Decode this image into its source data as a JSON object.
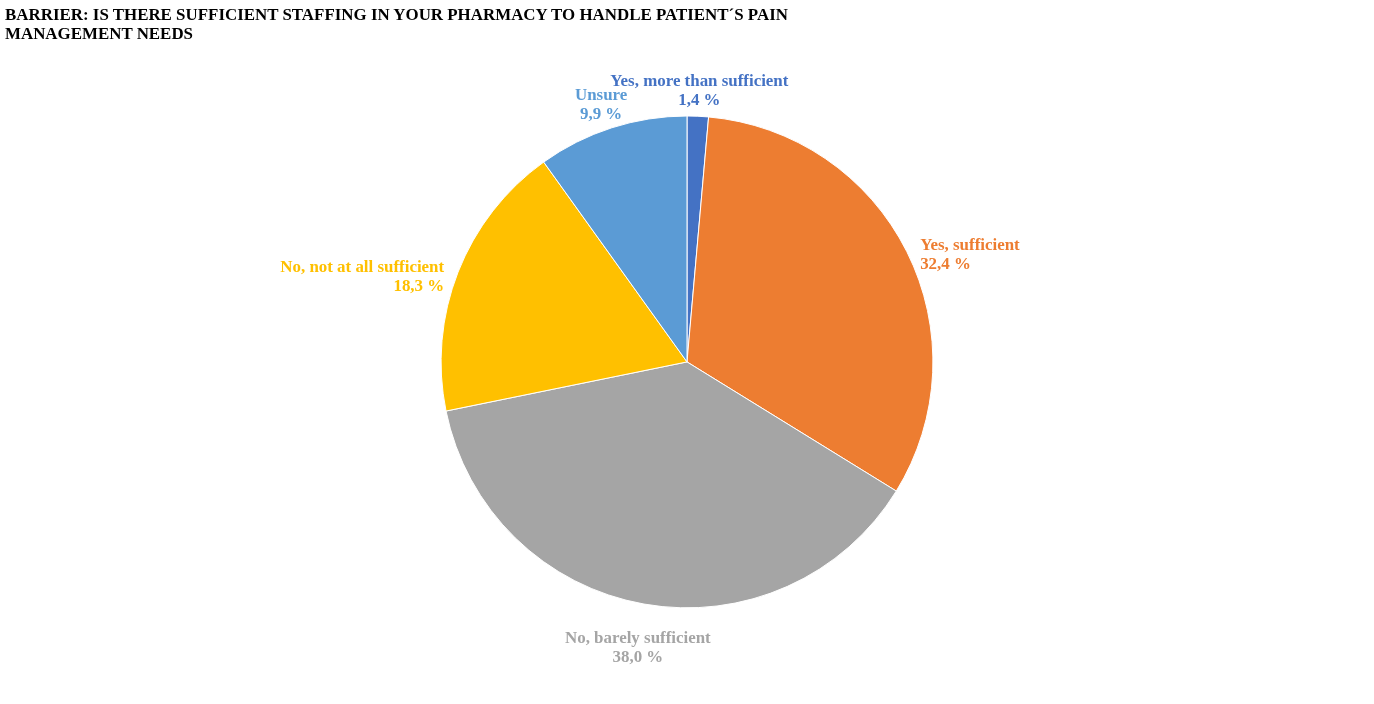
{
  "chart_data": {
    "type": "pie",
    "title": "BARRIER: IS THERE SUFFICIENT STAFFING IN YOUR PHARMACY TO HANDLE PATIENT´S PAIN MANAGEMENT NEEDS",
    "categories": [
      "Yes, more than sufficient",
      "Yes, sufficient",
      "No, barely sufficient",
      "No, not at all sufficient",
      "Unsure"
    ],
    "values": [
      1.4,
      32.4,
      38.0,
      18.3,
      9.9
    ],
    "value_labels": [
      "1,4 %",
      "32,4 %",
      "38,0 %",
      "18,3 %",
      "9,9 %"
    ],
    "colors": [
      "#4472c4",
      "#ed7d31",
      "#a5a5a5",
      "#ffc000",
      "#5b9bd5"
    ],
    "legend": false
  }
}
